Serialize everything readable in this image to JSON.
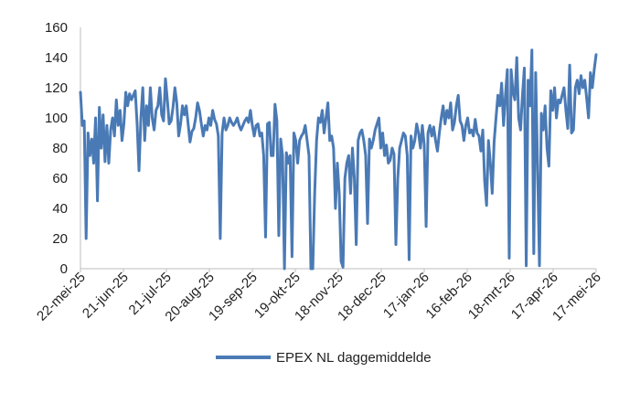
{
  "chart_data": {
    "type": "line",
    "title": "",
    "xlabel": "",
    "ylabel": "",
    "ylim": [
      0,
      160
    ],
    "yticks": [
      0,
      20,
      40,
      60,
      80,
      100,
      120,
      140,
      160
    ],
    "grid": false,
    "legend_position": "bottom-center",
    "x_tick_labels": [
      "22-mei-25",
      "21-jun-25",
      "21-jul-25",
      "20-aug-25",
      "19-sep-25",
      "19-okt-25",
      "18-nov-25",
      "18-dec-25",
      "17-jan-26",
      "16-feb-26",
      "18-mrt-26",
      "17-apr-26",
      "17-mei-26"
    ],
    "series": [
      {
        "name": "EPEX NL daggemiddelde",
        "color": "#4a7ab5",
        "values": [
          117,
          95,
          98,
          20,
          90,
          75,
          86,
          70,
          100,
          45,
          107,
          80,
          102,
          71,
          95,
          70,
          92,
          100,
          88,
          112,
          95,
          105,
          85,
          96,
          117,
          108,
          116,
          112,
          115,
          118,
          96,
          65,
          100,
          120,
          85,
          108,
          95,
          120,
          100,
          92,
          105,
          108,
          120,
          102,
          98,
          126,
          112,
          96,
          98,
          107,
          120,
          110,
          88,
          96,
          108,
          102,
          108,
          96,
          84,
          91,
          93,
          100,
          110,
          105,
          96,
          88,
          95,
          92,
          100,
          95,
          105,
          99,
          96,
          88,
          20,
          90,
          100,
          92,
          95,
          100,
          97,
          95,
          97,
          100,
          95,
          92,
          95,
          98,
          100,
          97,
          105,
          95,
          88,
          95,
          96,
          88,
          90,
          75,
          21,
          96,
          97,
          75,
          75,
          109,
          98,
          22,
          86,
          75,
          0,
          77,
          70,
          75,
          8,
          90,
          85,
          70,
          85,
          88,
          90,
          95,
          85,
          75,
          0,
          0,
          50,
          85,
          100,
          97,
          105,
          90,
          100,
          110,
          85,
          88,
          80,
          40,
          70,
          50,
          5,
          1,
          60,
          70,
          75,
          50,
          80,
          60,
          16,
          85,
          90,
          92,
          85,
          75,
          30,
          86,
          80,
          85,
          92,
          96,
          100,
          80,
          90,
          75,
          82,
          70,
          72,
          80,
          76,
          16,
          60,
          80,
          85,
          90,
          88,
          75,
          6,
          88,
          80,
          85,
          96,
          90,
          80,
          95,
          82,
          28,
          90,
          95,
          88,
          94,
          85,
          78,
          90,
          100,
          108,
          96,
          105,
          100,
          110,
          92,
          97,
          108,
          115,
          98,
          95,
          85,
          95,
          100,
          90,
          92,
          88,
          99,
          90,
          88,
          78,
          92,
          58,
          42,
          85,
          70,
          50,
          84,
          100,
          115,
          108,
          123,
          95,
          115,
          132,
          7,
          132,
          117,
          112,
          140,
          100,
          92,
          115,
          133,
          2,
          125,
          108,
          145,
          10,
          130,
          68,
          2,
          103,
          92,
          108,
          80,
          68,
          118,
          105,
          120,
          100,
          112,
          110,
          115,
          120,
          105,
          93,
          135,
          90,
          92,
          120,
          125,
          116,
          128,
          120,
          125,
          113,
          100,
          130,
          120,
          132,
          142
        ]
      }
    ]
  }
}
